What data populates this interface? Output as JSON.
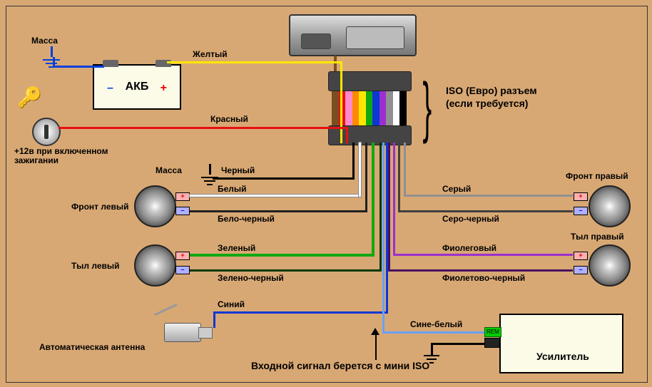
{
  "labels": {
    "mass": "Масса",
    "yellow": "Желтый",
    "akb": "АКБ",
    "iso1": "ISO (Евро) разъем",
    "iso2": "(если требуется)",
    "red": "Красный",
    "ignition1": "+12в при включенном",
    "ignition2": "зажигании",
    "mass2": "Масса",
    "black": "Черный",
    "white": "Белый",
    "front_left": "Фронт левый",
    "white_black": "Бело-черный",
    "green": "Зеленый",
    "rear_left": "Тыл левый",
    "green_black": "Зелено-черный",
    "blue": "Синий",
    "auto_antenna": "Автоматическая антенна",
    "front_right": "Фронт правый",
    "grey": "Серый",
    "grey_black": "Серо-черный",
    "rear_right": "Тыл правый",
    "violet": "Фиолеговый",
    "violet_black": "Фиолетово-черный",
    "blue_white": "Сине-белый",
    "rem": "REM",
    "amp": "Усилитель",
    "bottom_note": "Входной сигнал берется с мини ISO"
  },
  "colors": {
    "bg": "#d8a874",
    "yellow": "#ffe600",
    "red": "#e81010",
    "black": "#000000",
    "white": "#ffffff",
    "whiteblack": "#202020",
    "green": "#10a810",
    "greenblack": "#003800",
    "blue": "#0b37d3",
    "bluewhite": "#6aa0ff",
    "grey": "#909090",
    "greyblack": "#404040",
    "violet": "#9a2fcf",
    "violetblack": "#4a105f",
    "brown": "#7a4f20",
    "pink": "#ff88cc",
    "orange": "#ff8a00"
  },
  "layout": {
    "wire_thickness": 3,
    "font_size": 12
  },
  "ribbon_order": [
    "brown",
    "red",
    "pink",
    "orange",
    "yellow",
    "green",
    "blue",
    "violet",
    "grey",
    "white",
    "black"
  ]
}
